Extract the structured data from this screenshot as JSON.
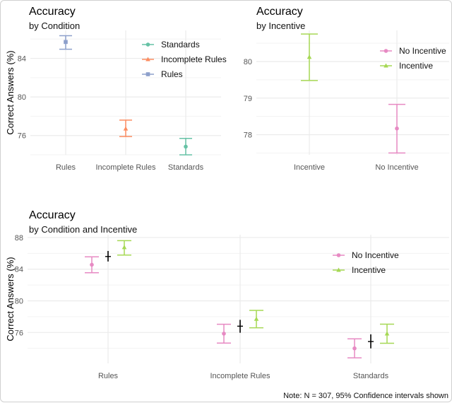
{
  "chart_data": [
    {
      "type": "errorbar",
      "title": "Accuracy",
      "subtitle": "by Condition",
      "ylabel": "Correct Answers (%)",
      "xlabel": "",
      "categories": [
        "Rules",
        "Incomplete Rules",
        "Standards"
      ],
      "yticks": [
        76,
        80,
        84
      ],
      "ylim": [
        74.0,
        86.9
      ],
      "grid": true,
      "legend": "top-right",
      "legend_entries": [
        "Standards",
        "Incomplete Rules",
        "Rules"
      ],
      "colors": {
        "Standards": "#66c2a5",
        "Incomplete Rules": "#fc8d62",
        "Rules": "#8da0cb"
      },
      "shapes": {
        "Standards": "circle",
        "Incomplete Rules": "triangle",
        "Rules": "square"
      },
      "points": [
        {
          "x": "Rules",
          "group": "Rules",
          "mean": 85.7,
          "lower": 84.95,
          "upper": 86.35
        },
        {
          "x": "Incomplete Rules",
          "group": "Incomplete Rules",
          "mean": 76.7,
          "lower": 75.9,
          "upper": 77.6
        },
        {
          "x": "Standards",
          "group": "Standards",
          "mean": 74.85,
          "lower": 74.0,
          "upper": 75.7
        }
      ]
    },
    {
      "type": "errorbar",
      "title": "Accuracy",
      "subtitle": "by Incentive",
      "ylabel": "",
      "xlabel": "",
      "categories": [
        "Incentive",
        "No Incentive"
      ],
      "yticks": [
        78,
        79,
        80
      ],
      "ylim": [
        77.45,
        80.85
      ],
      "grid": true,
      "legend": "top-right",
      "legend_entries": [
        "No Incentive",
        "Incentive"
      ],
      "colors": {
        "No Incentive": "#e78ac3",
        "Incentive": "#a6d854"
      },
      "shapes": {
        "No Incentive": "circle",
        "Incentive": "triangle"
      },
      "points": [
        {
          "x": "Incentive",
          "group": "Incentive",
          "mean": 80.12,
          "lower": 79.48,
          "upper": 80.75
        },
        {
          "x": "No Incentive",
          "group": "No Incentive",
          "mean": 78.17,
          "lower": 77.5,
          "upper": 78.83
        }
      ]
    },
    {
      "type": "errorbar",
      "title": "Accuracy",
      "subtitle": "by Condition and Incentive",
      "ylabel": "Correct Answers (%)",
      "xlabel": "",
      "categories": [
        "Rules",
        "Incomplete Rules",
        "Standards"
      ],
      "yticks": [
        76,
        80,
        84,
        88
      ],
      "ylim": [
        72.1,
        88.35
      ],
      "grid": true,
      "legend": "right",
      "legend_entries": [
        "No Incentive",
        "Incentive"
      ],
      "colors": {
        "No Incentive": "#e78ac3",
        "Incentive": "#a6d854",
        "Overall": "#000000"
      },
      "shapes": {
        "No Incentive": "circle",
        "Incentive": "triangle",
        "Overall": "cross"
      },
      "points": [
        {
          "x": "Rules",
          "group": "No Incentive",
          "mean": 84.56,
          "lower": 83.55,
          "upper": 85.56
        },
        {
          "x": "Rules",
          "group": "Overall",
          "mean": 85.6,
          "lower": 84.97,
          "upper": 86.3
        },
        {
          "x": "Rules",
          "group": "Incentive",
          "mean": 86.75,
          "lower": 85.78,
          "upper": 87.6
        },
        {
          "x": "Incomplete Rules",
          "group": "No Incentive",
          "mean": 75.86,
          "lower": 74.67,
          "upper": 77.04
        },
        {
          "x": "Incomplete Rules",
          "group": "Overall",
          "mean": 76.8,
          "lower": 75.97,
          "upper": 77.6
        },
        {
          "x": "Incomplete Rules",
          "group": "Incentive",
          "mean": 77.7,
          "lower": 76.6,
          "upper": 78.8
        },
        {
          "x": "Standards",
          "group": "No Incentive",
          "mean": 74.0,
          "lower": 72.8,
          "upper": 75.2
        },
        {
          "x": "Standards",
          "group": "Overall",
          "mean": 74.86,
          "lower": 74.0,
          "upper": 75.77
        },
        {
          "x": "Standards",
          "group": "Incentive",
          "mean": 75.85,
          "lower": 74.65,
          "upper": 77.05
        }
      ],
      "caption": "Note: N = 307, 95% Confidence intervals shown"
    }
  ]
}
